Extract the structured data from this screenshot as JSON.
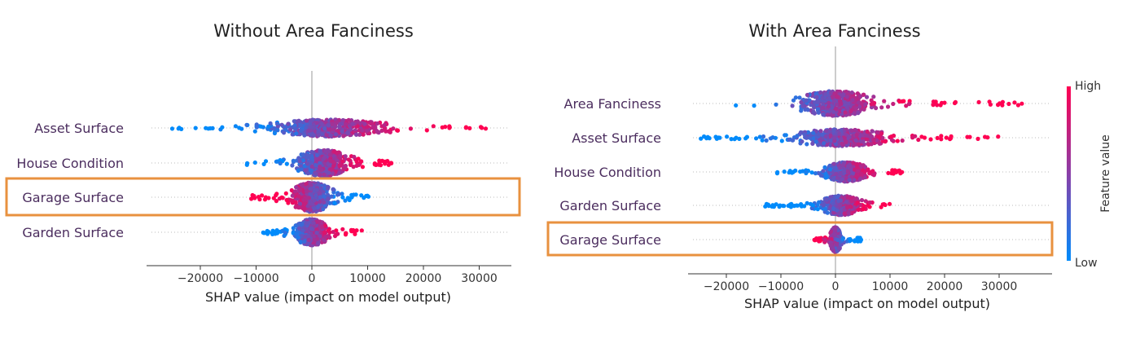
{
  "chart_data": [
    {
      "type": "scatter",
      "subtype": "shap-beeswarm",
      "title": "Without Area Fanciness",
      "xlabel": "SHAP value (impact on model output)",
      "ylabel": "",
      "xlim": [
        -30000,
        35000
      ],
      "xticks": [
        "−20000",
        "−10000",
        "0",
        "10000",
        "20000",
        "30000"
      ],
      "xtick_values": [
        -20000,
        -10000,
        0,
        10000,
        20000,
        30000
      ],
      "grid": false,
      "features": [
        {
          "name": "Asset Surface",
          "min": -26000,
          "max": 32000,
          "neg_color_high": false,
          "spread": 0.55,
          "peak": 3000,
          "width": 16000
        },
        {
          "name": "House Condition",
          "min": -12000,
          "max": 15000,
          "neg_color_high": false,
          "spread": 0.85,
          "peak": 2000,
          "width": 7000
        },
        {
          "name": "Garage Surface",
          "min": -11000,
          "max": 11000,
          "neg_color_high": true,
          "spread": 0.95,
          "peak": 0,
          "width": 5500
        },
        {
          "name": "Garden Surface",
          "min": -9000,
          "max": 9000,
          "neg_color_high": false,
          "spread": 0.85,
          "peak": 0,
          "width": 4500
        }
      ],
      "highlight": "Garage Surface",
      "highlight_color": "#e8913f"
    },
    {
      "type": "scatter",
      "subtype": "shap-beeswarm",
      "title": "With Area Fanciness",
      "xlabel": "SHAP value (impact on model output)",
      "ylabel": "",
      "xlim": [
        -28000,
        38000
      ],
      "xticks": [
        "−20000",
        "−10000",
        "0",
        "10000",
        "20000",
        "30000"
      ],
      "xtick_values": [
        -20000,
        -10000,
        0,
        10000,
        20000,
        30000
      ],
      "grid": false,
      "features": [
        {
          "name": "Area Fanciness",
          "min": -19000,
          "max": 36000,
          "neg_color_high": false,
          "spread": 0.9,
          "peak": 0,
          "width": 10000
        },
        {
          "name": "Asset Surface",
          "min": -25000,
          "max": 30000,
          "neg_color_high": false,
          "spread": 0.6,
          "peak": 1000,
          "width": 14000
        },
        {
          "name": "House Condition",
          "min": -11000,
          "max": 13000,
          "neg_color_high": false,
          "spread": 0.7,
          "peak": 2000,
          "width": 6000
        },
        {
          "name": "Garden Surface",
          "min": -13000,
          "max": 10000,
          "neg_color_high": false,
          "spread": 0.7,
          "peak": 1000,
          "width": 5500
        },
        {
          "name": "Garage Surface",
          "min": -4000,
          "max": 5000,
          "neg_color_high": true,
          "spread": 0.9,
          "peak": 0,
          "width": 1500
        }
      ],
      "highlight": "Garage Surface",
      "highlight_color": "#e8913f",
      "colorbar": {
        "label": "Feature value",
        "high": "High",
        "low": "Low",
        "color_high": "#ff0052",
        "color_low": "#008bfb"
      }
    }
  ]
}
